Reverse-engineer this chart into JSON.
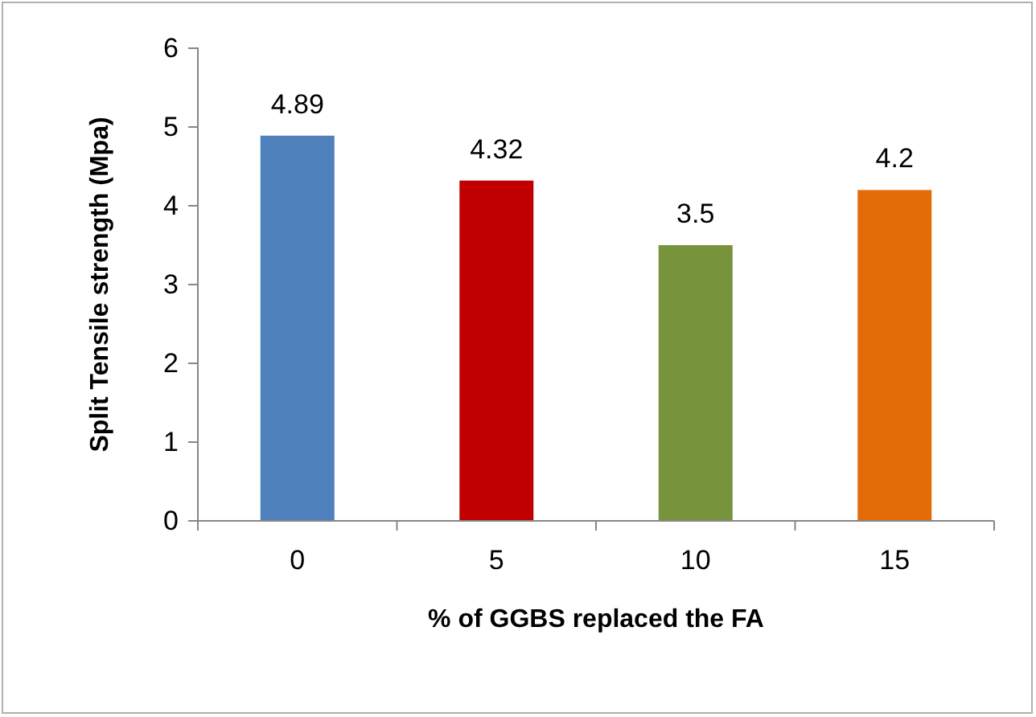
{
  "chart_data": {
    "type": "bar",
    "xlabel": "% of GGBS replaced the FA",
    "ylabel": "Split Tensile strength (Mpa)",
    "categories": [
      "0",
      "5",
      "10",
      "15"
    ],
    "values": [
      4.89,
      4.32,
      3.5,
      4.2
    ],
    "colors": [
      "#4f81bd",
      "#c00000",
      "#77933c",
      "#e36c09"
    ],
    "ylim": [
      0,
      6
    ],
    "yticks": [
      0,
      1,
      2,
      3,
      4,
      5,
      6
    ],
    "data_labels": true
  }
}
